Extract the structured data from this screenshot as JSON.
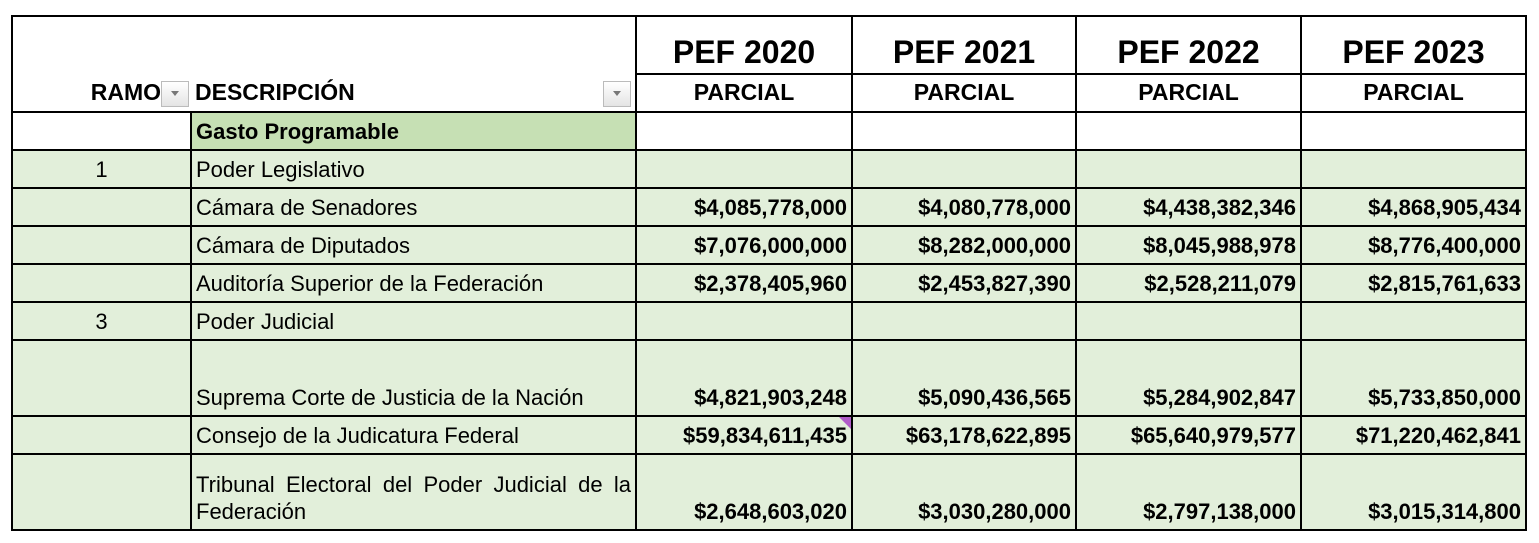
{
  "header": {
    "ramo_label": "RAMO",
    "descripcion_label": "DESCRIPCIÓN",
    "years": [
      "PEF 2020",
      "PEF 2021",
      "PEF 2022",
      "PEF 2023"
    ],
    "sub_labels": [
      "PARCIAL",
      "PARCIAL",
      "PARCIAL",
      "PARCIAL"
    ]
  },
  "colors": {
    "row_fill": "#e2efda",
    "section_fill": "#c6e0b4",
    "comment_marker": "#b05cc8"
  },
  "rows": [
    {
      "ramo": "",
      "descripcion": "Gasto Programable",
      "values": [
        "",
        "",
        "",
        ""
      ]
    },
    {
      "ramo": "1",
      "descripcion": "Poder Legislativo",
      "values": [
        "",
        "",
        "",
        ""
      ]
    },
    {
      "ramo": "",
      "descripcion": "Cámara de Senadores",
      "values": [
        "$4,085,778,000",
        "$4,080,778,000",
        "$4,438,382,346",
        "$4,868,905,434"
      ]
    },
    {
      "ramo": "",
      "descripcion": "Cámara de Diputados",
      "values": [
        "$7,076,000,000",
        "$8,282,000,000",
        "$8,045,988,978",
        "$8,776,400,000"
      ]
    },
    {
      "ramo": "",
      "descripcion": "Auditoría Superior de la Federación",
      "values": [
        "$2,378,405,960",
        "$2,453,827,390",
        "$2,528,211,079",
        "$2,815,761,633"
      ]
    },
    {
      "ramo": "3",
      "descripcion": "Poder Judicial",
      "values": [
        "",
        "",
        "",
        ""
      ]
    },
    {
      "ramo": "",
      "descripcion": "Suprema Corte de Justicia de la Nación",
      "values": [
        "$4,821,903,248",
        "$5,090,436,565",
        "$5,284,902,847",
        "$5,733,850,000"
      ]
    },
    {
      "ramo": "",
      "descripcion": "Consejo de la Judicatura Federal",
      "values": [
        "$59,834,611,435",
        "$63,178,622,895",
        "$65,640,979,577",
        "$71,220,462,841"
      ]
    },
    {
      "ramo": "",
      "descripcion": "Tribunal Electoral del Poder Judicial de la Federación",
      "values": [
        "$2,648,603,020",
        "$3,030,280,000",
        "$2,797,138,000",
        "$3,015,314,800"
      ]
    }
  ]
}
